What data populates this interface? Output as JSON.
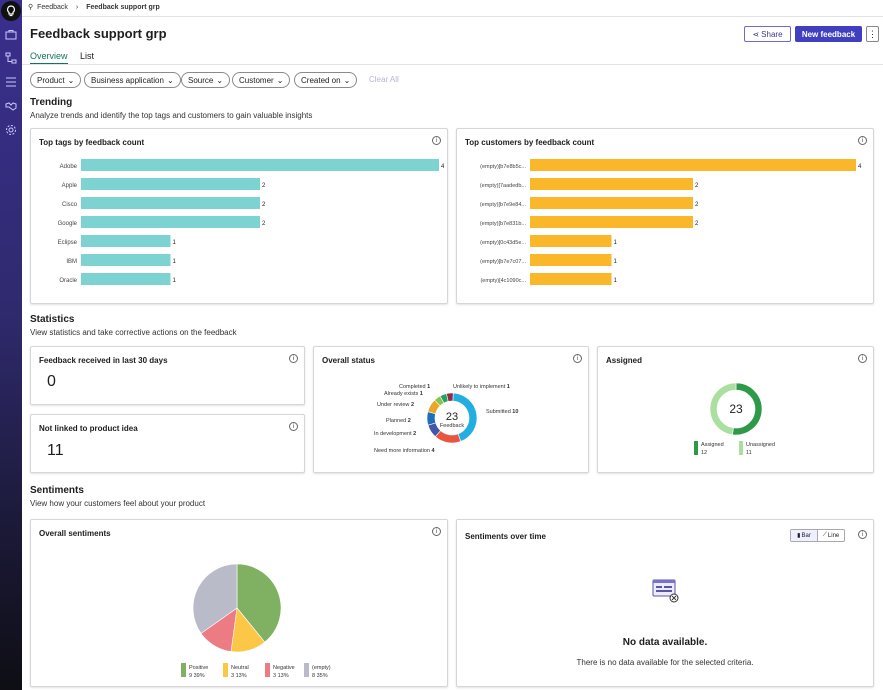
{
  "breadcrumb": {
    "root": "Feedback",
    "current": "Feedback support grp"
  },
  "page_title": "Feedback support grp",
  "actions": {
    "share": "Share",
    "new_feedback": "New feedback",
    "more": "⋮"
  },
  "tabs": [
    {
      "label": "Overview",
      "active": true
    },
    {
      "label": "List",
      "active": false
    }
  ],
  "filters": [
    "Product",
    "Business application",
    "Source",
    "Customer",
    "Created on"
  ],
  "clear_all": "Clear All",
  "sections": {
    "trending": {
      "title": "Trending",
      "subtitle": "Analyze trends and identify the top tags and customers to gain valuable insights"
    },
    "statistics": {
      "title": "Statistics",
      "subtitle": "View statistics and take corrective actions on the feedback"
    },
    "sentiments": {
      "title": "Sentiments",
      "subtitle": "View how your customers feel about your product"
    }
  },
  "cards": {
    "top_tags": "Top tags by feedback count",
    "top_customers": "Top customers by feedback count",
    "received": {
      "title": "Feedback received in last 30 days",
      "value": "0"
    },
    "not_linked": {
      "title": "Not linked to product idea",
      "value": "11"
    },
    "overall_status": "Overall status",
    "assigned": "Assigned",
    "overall_sentiments": "Overall sentiments",
    "sentiments_over_time": {
      "title": "Sentiments over time",
      "bar": "Bar",
      "line": "Line",
      "no_data_title": "No data available.",
      "no_data_text": "There is no data available for the selected criteria."
    }
  },
  "colors": {
    "accent": "#3f3fbf",
    "tags_bar": "#7dd3d1",
    "customers_bar": "#fbb72a",
    "positive": "#80b061",
    "neutral": "#fcc747",
    "negative": "#ec7b84",
    "empty": "#b9bcc8"
  },
  "chart_data": [
    {
      "type": "bar",
      "orientation": "horizontal",
      "categories": [
        "Adobe",
        "Apple",
        "Cisco",
        "Google",
        "Eclipse",
        "IBM",
        "Oracle"
      ],
      "values": [
        4,
        2,
        2,
        2,
        1,
        1,
        1
      ],
      "xlim": [
        0,
        4
      ]
    },
    {
      "type": "bar",
      "orientation": "horizontal",
      "categories": [
        "(empty)[b7e8b5c...",
        "(empty)[7aadedb...",
        "(empty)[b7e9e84...",
        "(empty)[b7e831b...",
        "(empty)[0c43d5e...",
        "(empty)[b7e7c07...",
        "(empty)[4c1090c..."
      ],
      "values": [
        4,
        2,
        2,
        2,
        1,
        1,
        1
      ],
      "xlim": [
        0,
        4
      ]
    },
    {
      "type": "pie",
      "donut": true,
      "center_value": "23",
      "center_label": "Feedback",
      "slices": [
        {
          "label": "Submitted",
          "value": 10,
          "color": "#22aee0"
        },
        {
          "label": "Need more information",
          "value": 4,
          "color": "#e9563f"
        },
        {
          "label": "In development",
          "value": 2,
          "color": "#4257a7"
        },
        {
          "label": "Planned",
          "value": 2,
          "color": "#1f6fb8"
        },
        {
          "label": "Under review",
          "value": 2,
          "color": "#e9a627"
        },
        {
          "label": "Already exists",
          "value": 1,
          "color": "#8bc34a"
        },
        {
          "label": "Completed",
          "value": 1,
          "color": "#21a366"
        },
        {
          "label": "Unlikely to implement",
          "value": 1,
          "color": "#8e2c4a"
        }
      ]
    },
    {
      "type": "pie",
      "donut": true,
      "center_value": "23",
      "slices": [
        {
          "label": "Assigned",
          "value": 12,
          "color": "#2e9a48"
        },
        {
          "label": "Unassigned",
          "value": 11,
          "color": "#a9df9f"
        }
      ]
    },
    {
      "type": "pie",
      "slices": [
        {
          "label": "Positive",
          "value": 9,
          "percent": "39%",
          "color": "#80b061"
        },
        {
          "label": "Neutral",
          "value": 3,
          "percent": "13%",
          "color": "#fcc747"
        },
        {
          "label": "Negative",
          "value": 3,
          "percent": "13%",
          "color": "#ec7b84"
        },
        {
          "label": "(empty)",
          "value": 8,
          "percent": "35%",
          "color": "#b9bcc8"
        }
      ]
    }
  ]
}
